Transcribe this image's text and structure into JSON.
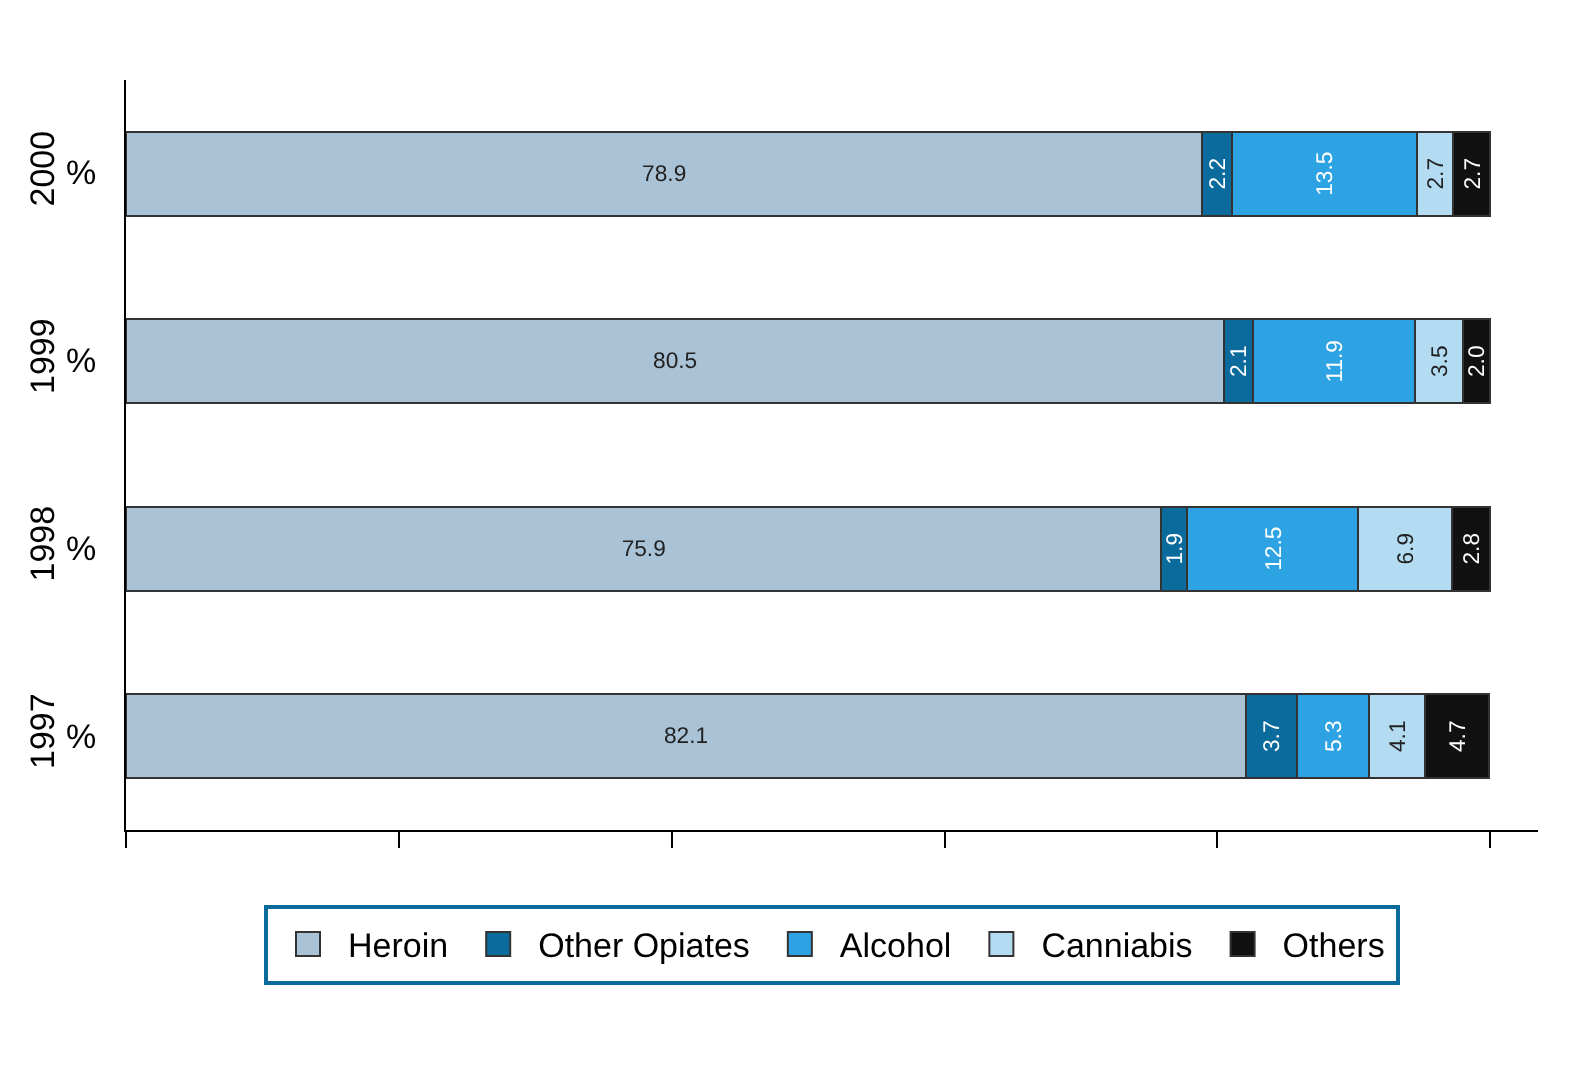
{
  "chart_data": {
    "type": "bar",
    "orientation": "horizontal",
    "stacked": true,
    "categories": [
      "2000",
      "1999",
      "1998",
      "1997"
    ],
    "series": [
      {
        "name": "Heroin",
        "color": "#a9c2d6",
        "values": [
          78.9,
          80.5,
          75.9,
          82.1
        ],
        "value_labels": [
          "78.9",
          "80.5",
          "75.9",
          "82.1"
        ]
      },
      {
        "name": "Other Opiates",
        "color": "#0b6b9c",
        "values": [
          2.2,
          2.1,
          1.9,
          3.7
        ],
        "value_labels": [
          "2.2",
          "2.1",
          "1.9",
          "3.7"
        ]
      },
      {
        "name": "Alcohol",
        "color": "#2ea3e3",
        "values": [
          13.5,
          11.9,
          12.5,
          5.3
        ],
        "value_labels": [
          "13.5",
          "11.9",
          "12.5",
          "5.3"
        ]
      },
      {
        "name": "Canniabis",
        "color": "#b3dcf3",
        "values": [
          2.7,
          3.5,
          6.9,
          4.1
        ],
        "value_labels": [
          "2.7",
          "3.5",
          "6.9",
          "4.1"
        ]
      },
      {
        "name": "Others",
        "color": "#111111",
        "values": [
          2.7,
          2.0,
          2.8,
          4.7
        ],
        "value_labels": [
          "2.7",
          "2.0",
          "2.8",
          "4.7"
        ]
      }
    ],
    "xlim": [
      0,
      103.5
    ],
    "xticks": [
      {
        "value": 0,
        "label": null
      },
      {
        "value": 20,
        "label": null
      },
      {
        "value": 40,
        "label": null
      },
      {
        "value": 60,
        "label": null
      },
      {
        "value": 80,
        "label": null
      },
      {
        "value": 100,
        "label": null
      }
    ],
    "annotations": [
      "%",
      "%",
      "%",
      "%"
    ],
    "legend": "bottom"
  }
}
